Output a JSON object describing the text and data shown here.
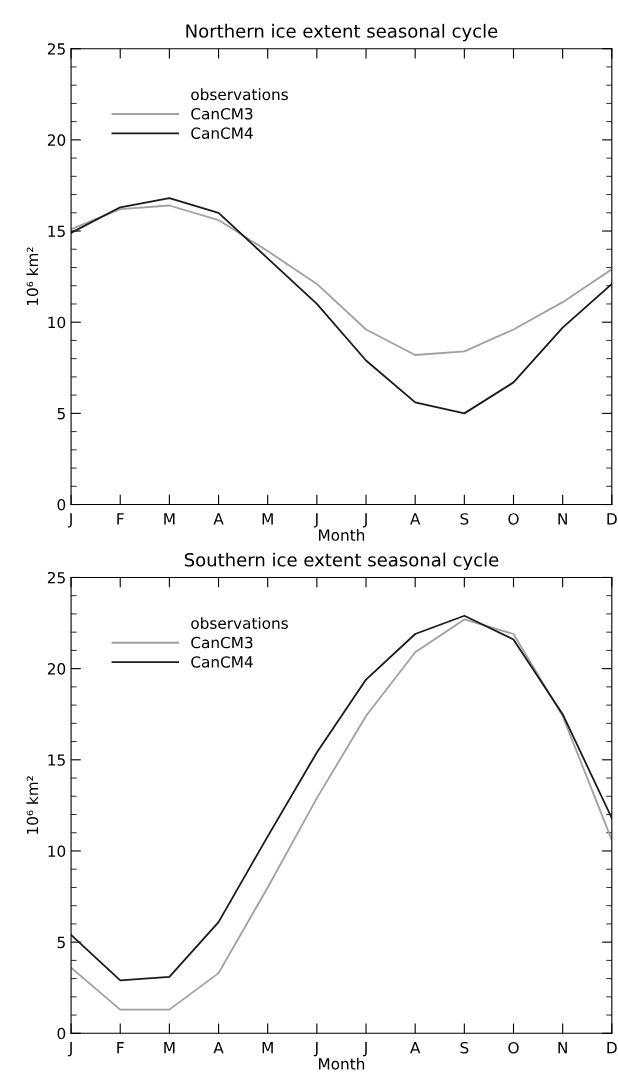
{
  "chart_data": [
    {
      "type": "line",
      "title": "Northern ice extent seasonal cycle",
      "xlabel": "Month",
      "ylabel": "10⁶ km²",
      "categories": [
        "J",
        "F",
        "M",
        "A",
        "M",
        "J",
        "J",
        "A",
        "S",
        "O",
        "N",
        "D"
      ],
      "series": [
        {
          "name": "observations",
          "values": [
            null,
            null,
            null,
            null,
            null,
            null,
            null,
            null,
            null,
            null,
            null,
            null
          ]
        },
        {
          "name": "CanCM3",
          "color": "#a0a0a0",
          "values": [
            15.1,
            16.2,
            16.4,
            15.6,
            13.9,
            12.1,
            9.6,
            8.2,
            8.4,
            9.6,
            11.1,
            12.9
          ]
        },
        {
          "name": "CanCM4",
          "color": "#1a1a1a",
          "values": [
            14.9,
            16.3,
            16.8,
            16.0,
            13.5,
            11.0,
            7.9,
            5.6,
            5.0,
            6.7,
            9.7,
            12.1
          ]
        }
      ],
      "ylim": [
        0,
        25
      ],
      "yticks": [
        0,
        5,
        10,
        15,
        20,
        25
      ],
      "legend": "top left",
      "grid": false,
      "marker": "none",
      "line_style": "solid"
    },
    {
      "type": "line",
      "title": "Southern ice extent seasonal cycle",
      "xlabel": "Month",
      "ylabel": "10⁶ km²",
      "categories": [
        "J",
        "F",
        "M",
        "A",
        "M",
        "J",
        "J",
        "A",
        "S",
        "O",
        "N",
        "D"
      ],
      "series": [
        {
          "name": "observations",
          "values": [
            null,
            null,
            null,
            null,
            null,
            null,
            null,
            null,
            null,
            null,
            null,
            null
          ]
        },
        {
          "name": "CanCM3",
          "color": "#a0a0a0",
          "values": [
            3.6,
            1.3,
            1.3,
            3.3,
            8.0,
            12.9,
            17.4,
            20.9,
            22.7,
            21.9,
            17.4,
            10.6
          ]
        },
        {
          "name": "CanCM4",
          "color": "#1a1a1a",
          "values": [
            5.4,
            2.9,
            3.1,
            6.1,
            10.8,
            15.4,
            19.4,
            21.9,
            22.9,
            21.6,
            17.5,
            11.8
          ]
        }
      ],
      "ylim": [
        0,
        25
      ],
      "yticks": [
        0,
        5,
        10,
        15,
        20,
        25
      ],
      "legend": "top left",
      "grid": false,
      "marker": "none",
      "line_style": "solid"
    }
  ]
}
